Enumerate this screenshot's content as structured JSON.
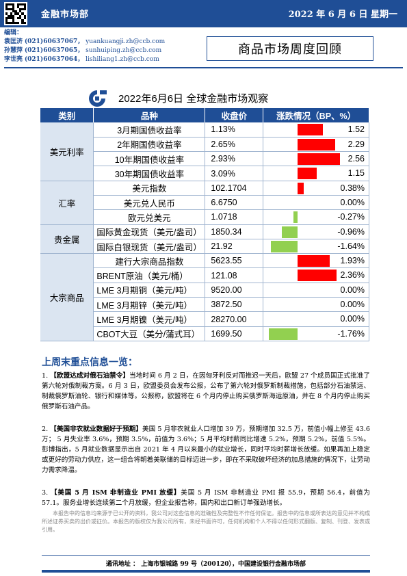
{
  "header": {
    "department": "金融市场部",
    "date": "2022 年 6 月 6 日  星期一"
  },
  "editors": {
    "label": "编辑：",
    "list": [
      {
        "name": "袁匡济",
        "phone": "(021)60637067，",
        "email": "yuankuangji.zh@ccb.com"
      },
      {
        "name": "孙慧萍",
        "phone": "(021)60637065，",
        "email": "sunhuiping.zh@ccb.com"
      },
      {
        "name": "李世亮",
        "phone": "(021)60637064，",
        "email": "lishiliang1.zh@ccb.com"
      }
    ]
  },
  "doc_title": "商品市场周度回顾",
  "report_title": "2022年6月6日  全球金融市场观察",
  "colors": {
    "brand": "#1f4e96",
    "up": "#ff0000",
    "down": "#92d050",
    "cat_bg": "#dbe5f1"
  },
  "table": {
    "headers": [
      "类别",
      "品种",
      "收盘价",
      "涨跌情况（BP、%）"
    ],
    "groups": [
      {
        "category": "美元利率",
        "rows": [
          {
            "item": "3月期国债收益率",
            "close": "1.13%",
            "change_label": "1.52",
            "change": 1.52,
            "unit": "bp"
          },
          {
            "item": "2年期国债收益率",
            "close": "2.65%",
            "change_label": "2.29",
            "change": 2.29,
            "unit": "bp"
          },
          {
            "item": "10年期国债收益率",
            "close": "2.93%",
            "change_label": "2.56",
            "change": 2.56,
            "unit": "bp"
          },
          {
            "item": "30年期国债收益率",
            "close": "3.09%",
            "change_label": "1.15",
            "change": 1.15,
            "unit": "bp"
          }
        ]
      },
      {
        "category": "汇率",
        "rows": [
          {
            "item": "美元指数",
            "close": "102.1704",
            "change_label": "0.38%",
            "change": 0.38,
            "unit": "pct"
          },
          {
            "item": "美元兑人民币",
            "close": "6.6750",
            "change_label": "0.00%",
            "change": 0.0,
            "unit": "pct"
          },
          {
            "item": "欧元兑美元",
            "close": "1.0718",
            "change_label": "-0.27%",
            "change": -0.27,
            "unit": "pct"
          }
        ]
      },
      {
        "category": "贵金属",
        "rows": [
          {
            "item": "国际黄金现货（美元/盎司）",
            "close": "1850.34",
            "change_label": "-0.96%",
            "change": -0.96,
            "unit": "pct"
          },
          {
            "item": "国际白银现货（美元/盎司）",
            "close": "21.92",
            "change_label": "-1.64%",
            "change": -1.64,
            "unit": "pct"
          }
        ]
      },
      {
        "category": "大宗商品",
        "rows": [
          {
            "item": "建行大宗商品指数",
            "close": "5623.55",
            "change_label": "1.93%",
            "change": 1.93,
            "unit": "pct"
          },
          {
            "item": "BRENT原油（美元/桶）",
            "close": "121.08",
            "change_label": "2.36%",
            "change": 2.36,
            "unit": "pct"
          },
          {
            "item": "LME 3月期铜（美元/吨）",
            "close": "9520.00",
            "change_label": "0.00%",
            "change": 0.0,
            "unit": "pct"
          },
          {
            "item": "LME 3月期锌（美元/吨）",
            "close": "3872.50",
            "change_label": "0.00%",
            "change": 0.0,
            "unit": "pct"
          },
          {
            "item": "LME 3月期镍（美元/吨）",
            "close": "28270.00",
            "change_label": "0.00%",
            "change": 0.0,
            "unit": "pct"
          },
          {
            "item": "CBOT大豆（美分/蒲式耳）",
            "close": "1699.50",
            "change_label": "-1.76%",
            "change": -1.76,
            "unit": "pct"
          }
        ]
      }
    ]
  },
  "key_info": {
    "heading": "上周末重点信息一览：",
    "items": [
      {
        "num": "1.",
        "title": "【欧盟达成对俄石油禁令】",
        "body": "当地时间 6 月 2 日，在因匈牙利反对而推迟一天后，欧盟 27 个成员国正式批准了第六轮对俄制裁方案。6 月 3 日，欧盟委员会发布公报，公布了第六轮对俄罗斯制裁措施，包括部分石油禁运、制裁俄罗斯油轮、银行和媒体等。公报称，欧盟将在 6 个月内停止购买俄罗斯海运原油，并在 8 个月内停止购买俄罗斯石油产品。"
      },
      {
        "num": "2.",
        "title": "【美国非农就业数据好于预期】",
        "body": "美国 5 月非农就业人口增加 39 万，预期增加 32.5 万，前值小幅上修至 43.6 万； 5 月失业率 3.6%，预期 3.5%，前值为 3.6%；5 月平均时薪同比增速 5.2%，预期 5.2%，前值 5.5%。彭博指出，5 月就业数据显示出自 2021 年 4 月以来最小的就业增长，同时平均时薪增长放缓。如果再加上稳定或更好的劳动力供应，这一组合将朝着美联储的目标迈进一步，即在不采取破坏经济的加息措施的情况下，让劳动力需求降温。"
      },
      {
        "num": "3.",
        "title": "【美国 5 月 ISM 非制造业 PMI 放缓】",
        "body": "美国 5 月 ISM 非制造业 PMI 报 55.9，预期 56.4，前值为 57.1。服务业增长连续第二个月放缓，但企业报告称，国内和出口新订单强劲增长。"
      }
    ]
  },
  "disclaimer": "本报告中的信息均来源于已公开的资料，我公司对这些信息的准确性及完整性不作任何保证。报告中的信息或所表达的意见并不构成所述证券买卖的出价或征价。本报告的版权仅为我公司所有，未经书面许可，任何机构和个人不得以任何形式翻版、复制、刊登、发表或引用。",
  "footer": "通讯地址 ： 上海市银城路 99 号（200120），中国建设银行金融市场部"
}
